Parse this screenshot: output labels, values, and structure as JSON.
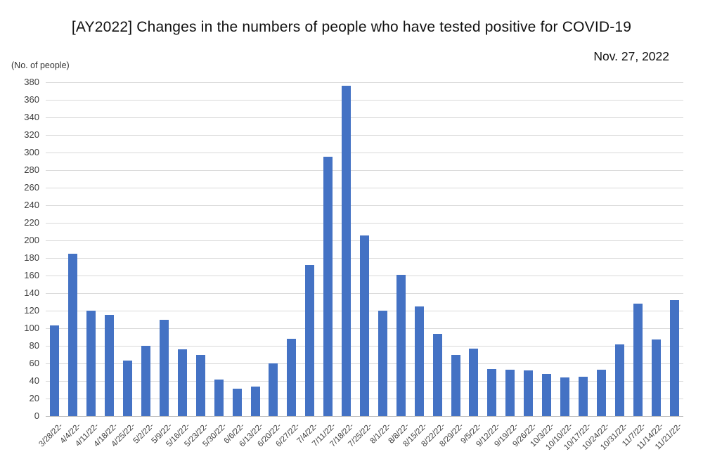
{
  "header": {
    "title": "[AY2022] Changes in the numbers of people who have tested positive for COVID-19",
    "date": "Nov. 27, 2022"
  },
  "chart_data": {
    "type": "bar",
    "title": "[AY2022] Changes in the numbers of people who have tested positive for COVID-19",
    "subtitle": "Nov. 27, 2022",
    "unit_label": "(No. of people)",
    "xlabel": "",
    "ylabel": "No. of people",
    "categories": [
      "3/28/22-",
      "4/4/22-",
      "4/11/22-",
      "4/18/22-",
      "4/25/22-",
      "5/2/22-",
      "5/9/22-",
      "5/16/22-",
      "5/23/22-",
      "5/30/22-",
      "6/6/22-",
      "6/13/22-",
      "6/20/22-",
      "6/27/22-",
      "7/4/22-",
      "7/11/22-",
      "7/18/22-",
      "7/25/22-",
      "8/1/22-",
      "8/8/22-",
      "8/15/22-",
      "8/22/22-",
      "8/29/22-",
      "9/5/22-",
      "9/12/22-",
      "9/19/22-",
      "9/26/22-",
      "10/3/22-",
      "10/10/22-",
      "10/17/22-",
      "10/24/22-",
      "10/31/22-",
      "11/7/22-",
      "11/14/22-",
      "11/21/22-"
    ],
    "values": [
      103,
      185,
      120,
      115,
      63,
      80,
      110,
      76,
      70,
      42,
      31,
      34,
      60,
      88,
      172,
      295,
      376,
      206,
      120,
      161,
      125,
      94,
      70,
      77,
      54,
      53,
      52,
      48,
      44,
      45,
      53,
      82,
      128,
      87,
      132
    ],
    "ylim": [
      0,
      380
    ],
    "ytick_step": 20,
    "grid": true,
    "legend": false,
    "bar_color": "#4472C4",
    "gridline_color": "#D9D9D9",
    "axis_line_color": "#BFBFBF",
    "tick_label_color": "#404040"
  }
}
